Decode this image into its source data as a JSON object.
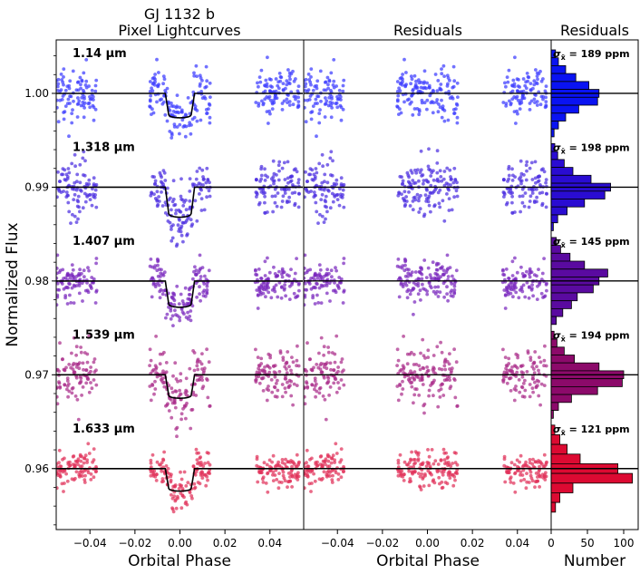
{
  "figure": {
    "title_line1": "GJ 1132 b",
    "title_line2": "Pixel Lightcurves",
    "panel2_title": "Residuals",
    "panel3_title": "Residuals",
    "ylabel": "Normalized Flux",
    "xlabel_left": "Orbital Phase",
    "xlabel_mid": "Orbital Phase",
    "xlabel_right": "Number"
  },
  "chart_data": {
    "type": "scatter",
    "title": "GJ 1132 b Pixel Lightcurves",
    "xlabel": "Orbital Phase",
    "ylabel": "Normalized Flux",
    "xlim": [
      -0.055,
      0.055
    ],
    "ylim": [
      0.9535,
      1.0057
    ],
    "x_ticks": [
      -0.04,
      -0.02,
      0.0,
      0.02,
      0.04
    ],
    "x_tick_labels": [
      "−0.04",
      "−0.02",
      "0.00",
      "0.02",
      "0.04"
    ],
    "y_ticks": [
      0.96,
      0.97,
      0.98,
      0.99,
      1.0
    ],
    "y_tick_labels": [
      "0.96",
      "0.97",
      "0.98",
      "0.99",
      "1.00"
    ],
    "hist_xlim": [
      0,
      120
    ],
    "hist_ticks": [
      0,
      50,
      100
    ],
    "hist_tick_labels": [
      "0",
      "50",
      "100"
    ],
    "transit": {
      "center": 0.0,
      "half_width": 0.0065,
      "ingress": 0.0015
    },
    "observation_windows": [
      [
        -0.055,
        -0.037
      ],
      [
        -0.0135,
        0.0135
      ],
      [
        0.0335,
        0.053
      ]
    ],
    "series": [
      {
        "name": "1.14 μm",
        "label": "1.14 μm",
        "offset": 1.0,
        "depth": 0.0026,
        "noise_ppm": 189,
        "sigma_label": "= 189 ppm",
        "color": "#3b3bff",
        "hist_color": "#0a13f2",
        "hist_counts": [
          6,
          10,
          20,
          34,
          52,
          66,
          64,
          38,
          20,
          10,
          4
        ]
      },
      {
        "name": "1.318 μm",
        "label": "1.318 μm",
        "offset": 0.99,
        "depth": 0.0032,
        "noise_ppm": 198,
        "sigma_label": "= 198 ppm",
        "color": "#4c2fe0",
        "hist_color": "#2a0cd2",
        "hist_counts": [
          5,
          9,
          18,
          30,
          55,
          82,
          74,
          46,
          22,
          9,
          3
        ]
      },
      {
        "name": "1.407 μm",
        "label": "1.407 μm",
        "offset": 0.98,
        "depth": 0.0028,
        "noise_ppm": 145,
        "sigma_label": "= 145 ppm",
        "color": "#7a28be",
        "hist_color": "#5a0aa0",
        "hist_counts": [
          7,
          13,
          26,
          46,
          78,
          66,
          58,
          36,
          28,
          16,
          7
        ]
      },
      {
        "name": "1.539 μm",
        "label": "1.539 μm",
        "offset": 0.97,
        "depth": 0.0025,
        "noise_ppm": 194,
        "sigma_label": "= 194 ppm",
        "color": "#aa2e8a",
        "hist_color": "#8c0a6a",
        "hist_counts": [
          4,
          8,
          18,
          32,
          66,
          100,
          98,
          64,
          28,
          10,
          3
        ]
      },
      {
        "name": "1.633 μm",
        "label": "1.633 μm",
        "offset": 0.96,
        "depth": 0.0024,
        "noise_ppm": 121,
        "sigma_label": "= 121 ppm",
        "color": "#e0325a",
        "hist_color": "#dc0a32",
        "hist_counts": [
          5,
          12,
          22,
          40,
          92,
          112,
          30,
          12,
          6
        ]
      }
    ]
  }
}
